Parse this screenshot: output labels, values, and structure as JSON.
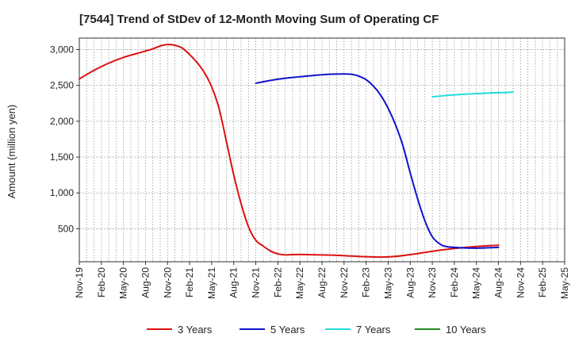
{
  "chart_data": {
    "type": "line",
    "title": "[7544]  Trend of StDev of 12-Month Moving Sum of Operating CF",
    "xlabel": "",
    "ylabel": "Amount (million yen)",
    "x_ticks": [
      "Nov-19",
      "Feb-20",
      "May-20",
      "Aug-20",
      "Nov-20",
      "Feb-21",
      "May-21",
      "Aug-21",
      "Nov-21",
      "Feb-22",
      "May-22",
      "Aug-22",
      "Nov-22",
      "Feb-23",
      "May-23",
      "Aug-23",
      "Nov-23",
      "Feb-24",
      "May-24",
      "Aug-24",
      "Nov-24",
      "Feb-25",
      "May-25"
    ],
    "y_ticks": [
      500,
      1000,
      1500,
      2000,
      2500,
      3000
    ],
    "y_tick_labels": [
      "500",
      "1,000",
      "1,500",
      "2,000",
      "2,500",
      "3,000"
    ],
    "ylim": [
      40,
      3160
    ],
    "grid": true,
    "legend_position": "bottom",
    "colors": {
      "3y": "#dd1111",
      "5y": "#1111cc",
      "7y": "#22dddd",
      "10y": "#228822"
    },
    "series": [
      {
        "name": "3 Years",
        "color": "#dd1111",
        "points": [
          [
            "Nov-19",
            2590
          ],
          [
            "Jan-20",
            2710
          ],
          [
            "Mar-20",
            2810
          ],
          [
            "May-20",
            2890
          ],
          [
            "Jul-20",
            2950
          ],
          [
            "Sep-20",
            3010
          ],
          [
            "Oct-20",
            3050
          ],
          [
            "Nov-20",
            3070
          ],
          [
            "Dec-20",
            3060
          ],
          [
            "Jan-21",
            3020
          ],
          [
            "Feb-21",
            2930
          ],
          [
            "Mar-21",
            2820
          ],
          [
            "Apr-21",
            2680
          ],
          [
            "May-21",
            2480
          ],
          [
            "Jun-21",
            2180
          ],
          [
            "Jul-21",
            1720
          ],
          [
            "Aug-21",
            1250
          ],
          [
            "Sep-21",
            850
          ],
          [
            "Oct-21",
            530
          ],
          [
            "Nov-21",
            340
          ],
          [
            "Dec-21",
            260
          ],
          [
            "Jan-22",
            190
          ],
          [
            "Feb-22",
            150
          ],
          [
            "Mar-22",
            135
          ],
          [
            "Apr-22",
            140
          ],
          [
            "Jun-22",
            140
          ],
          [
            "Aug-22",
            135
          ],
          [
            "Oct-22",
            130
          ],
          [
            "Dec-22",
            120
          ],
          [
            "Feb-23",
            110
          ],
          [
            "Apr-23",
            105
          ],
          [
            "Jun-23",
            115
          ],
          [
            "Aug-23",
            140
          ],
          [
            "Oct-23",
            170
          ],
          [
            "Dec-23",
            200
          ],
          [
            "Feb-24",
            225
          ],
          [
            "Apr-24",
            245
          ],
          [
            "Jun-24",
            260
          ],
          [
            "Aug-24",
            270
          ]
        ]
      },
      {
        "name": "5 Years",
        "color": "#1111cc",
        "points": [
          [
            "Nov-21",
            2530
          ],
          [
            "Jan-22",
            2570
          ],
          [
            "Mar-22",
            2600
          ],
          [
            "May-22",
            2620
          ],
          [
            "Jul-22",
            2640
          ],
          [
            "Sep-22",
            2655
          ],
          [
            "Nov-22",
            2660
          ],
          [
            "Dec-22",
            2655
          ],
          [
            "Jan-23",
            2630
          ],
          [
            "Feb-23",
            2580
          ],
          [
            "Mar-23",
            2490
          ],
          [
            "Apr-23",
            2360
          ],
          [
            "May-23",
            2180
          ],
          [
            "Jun-23",
            1950
          ],
          [
            "Jul-23",
            1660
          ],
          [
            "Aug-23",
            1280
          ],
          [
            "Sep-23",
            920
          ],
          [
            "Oct-23",
            610
          ],
          [
            "Nov-23",
            390
          ],
          [
            "Dec-23",
            290
          ],
          [
            "Jan-24",
            250
          ],
          [
            "Mar-24",
            235
          ],
          [
            "May-24",
            230
          ],
          [
            "Aug-24",
            240
          ]
        ]
      },
      {
        "name": "7 Years",
        "color": "#22dddd",
        "points": [
          [
            "Nov-23",
            2340
          ],
          [
            "Jan-24",
            2360
          ],
          [
            "Mar-24",
            2375
          ],
          [
            "May-24",
            2385
          ],
          [
            "Jul-24",
            2395
          ],
          [
            "Sep-24",
            2400
          ],
          [
            "Oct-24",
            2410
          ]
        ]
      },
      {
        "name": "10 Years",
        "color": "#228822",
        "points": []
      }
    ]
  }
}
